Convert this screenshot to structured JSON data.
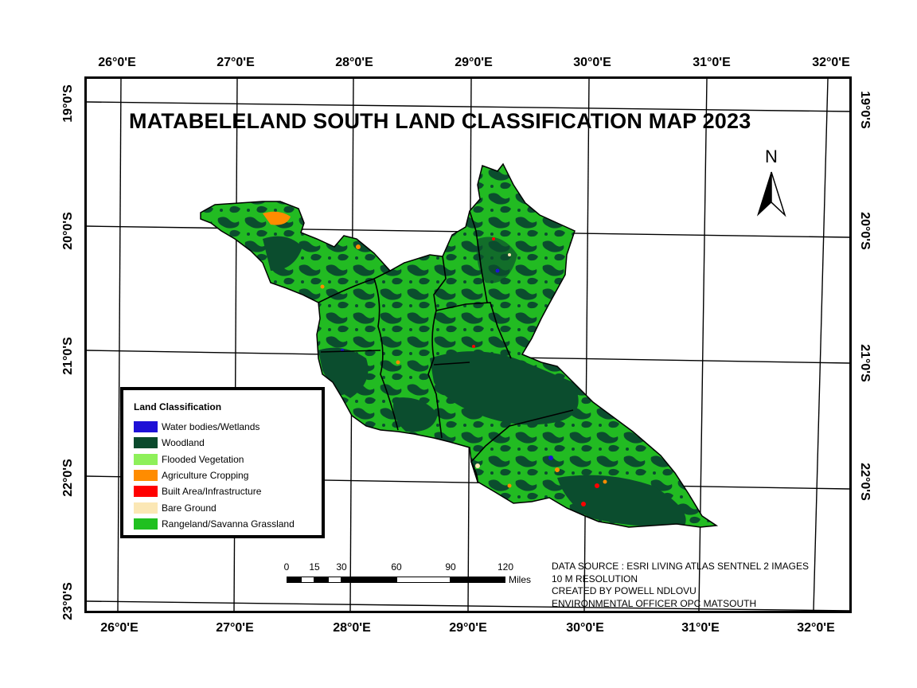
{
  "title": "MATABELELAND SOUTH LAND CLASSIFICATION MAP 2023",
  "longitude_ticks": [
    "26°0'E",
    "27°0'E",
    "28°0'E",
    "29°0'E",
    "30°0'E",
    "31°0'E",
    "32°0'E"
  ],
  "latitude_ticks": [
    "19°0'S",
    "20°0'S",
    "21°0'S",
    "22°0'S",
    "23°0'S"
  ],
  "north_arrow": {
    "label": "N"
  },
  "legend": {
    "title": "Land Classification",
    "items": [
      {
        "label": "Water bodies/Wetlands",
        "color": "#1e10d6"
      },
      {
        "label": "Woodland",
        "color": "#0a4a2c"
      },
      {
        "label": "Flooded Vegetation",
        "color": "#8ef05a"
      },
      {
        "label": "Agriculture Cropping",
        "color": "#ff8c00"
      },
      {
        "label": "Built Area/Infrastructure",
        "color": "#ff0000"
      },
      {
        "label": "Bare Ground",
        "color": "#fbe7b5"
      },
      {
        "label": "Rangeland/Savanna Grassland",
        "color": "#20c020"
      }
    ]
  },
  "scale_bar": {
    "ticks": [
      "0",
      "15",
      "30",
      "60",
      "90",
      "120"
    ],
    "units": "Miles"
  },
  "credits": [
    "DATA SOURCE : ESRI LIVING ATLAS SENTNEL 2 IMAGES",
    "10 M RESOLUTION",
    "CREATED BY POWELL NDLOVU",
    "ENVIRONMENTAL OFFICER OPC MATSOUTH"
  ]
}
